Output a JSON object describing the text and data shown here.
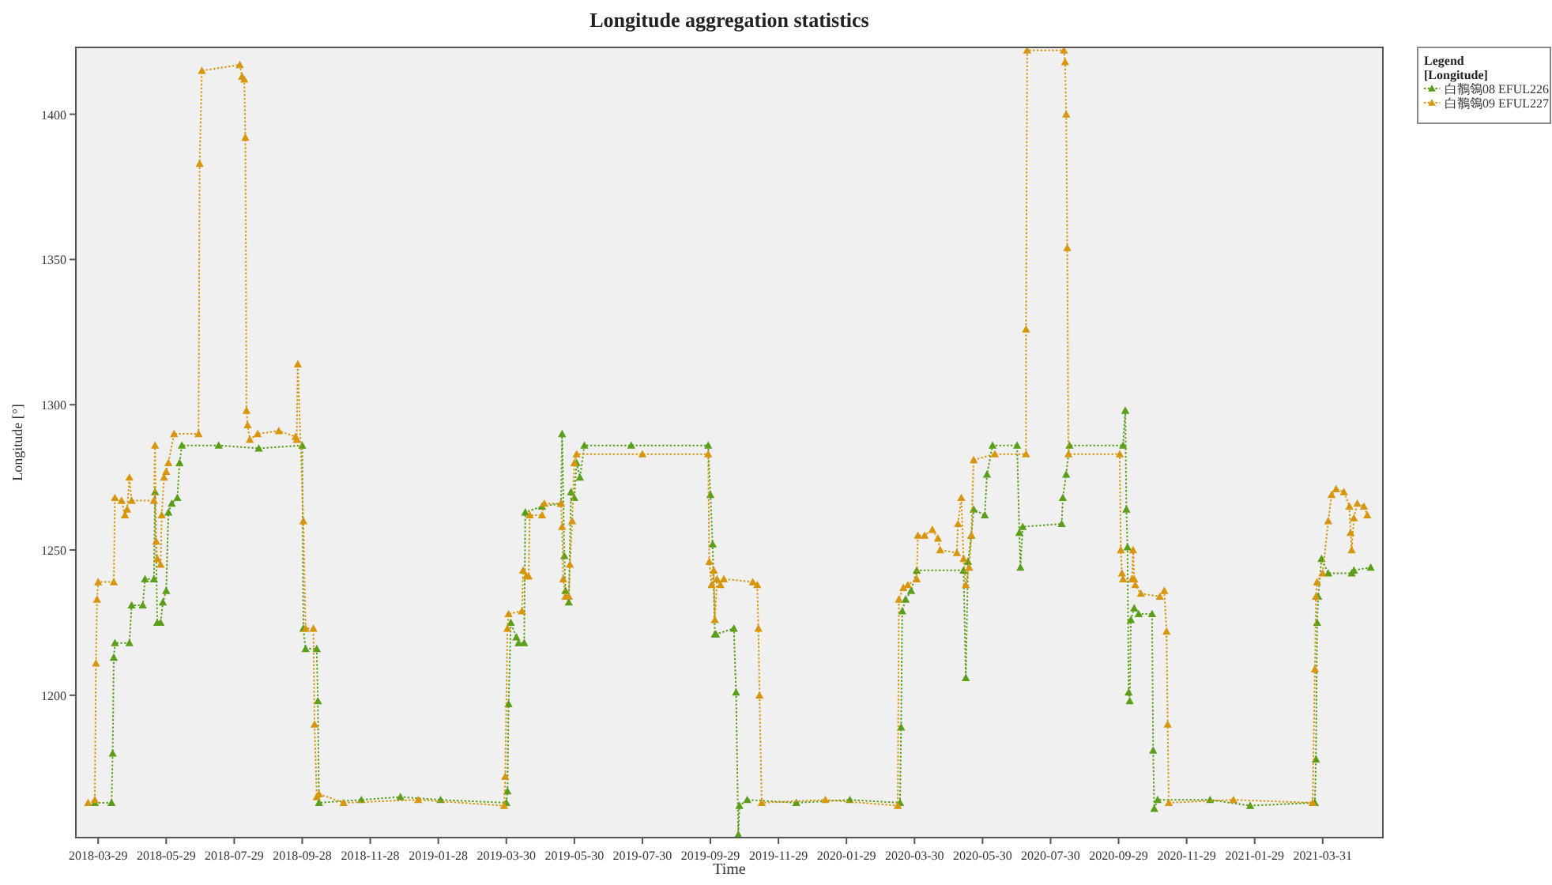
{
  "chart_data": {
    "type": "line",
    "title": "Longitude aggregation statistics",
    "xlabel": "Time",
    "ylabel": "Longitude [°]",
    "legend_title": "Legend\n[Longitude]",
    "legend": "top right",
    "marker": "triangle",
    "line_style": "dotted",
    "grid": false,
    "xlim": [
      "2018-03-09",
      "2021-05-24"
    ],
    "xticks": [
      "2018-03-29",
      "2018-05-29",
      "2018-07-29",
      "2018-09-28",
      "2018-11-28",
      "2019-01-28",
      "2019-03-30",
      "2019-05-30",
      "2019-07-30",
      "2019-09-29",
      "2019-11-29",
      "2020-01-29",
      "2020-03-30",
      "2020-05-30",
      "2020-07-30",
      "2020-09-29",
      "2020-11-29",
      "2021-01-29",
      "2021-03-31"
    ],
    "ylim": [
      1151,
      1423
    ],
    "yticks": [
      1200,
      1250,
      1300,
      1350,
      1400
    ],
    "series": [
      {
        "name": "白鶺鴒08 EFUL226",
        "color": "#5a9e1a",
        "x": [
          "2018-03-26",
          "2018-04-10",
          "2018-04-11",
          "2018-04-12",
          "2018-04-13",
          "2018-04-26",
          "2018-04-28",
          "2018-05-08",
          "2018-05-10",
          "2018-05-18",
          "2018-05-19",
          "2018-05-21",
          "2018-05-24",
          "2018-05-26",
          "2018-05-29",
          "2018-05-31",
          "2018-06-03",
          "2018-06-08",
          "2018-06-10",
          "2018-06-12",
          "2018-07-15",
          "2018-08-20",
          "2018-09-28",
          "2018-09-29",
          "2018-10-01",
          "2018-10-11",
          "2018-10-12",
          "2018-10-13",
          "2018-11-20",
          "2018-12-25",
          "2019-01-30",
          "2019-03-30",
          "2019-03-31",
          "2019-04-01",
          "2019-04-03",
          "2019-04-08",
          "2019-04-10",
          "2019-04-15",
          "2019-04-16",
          "2019-05-01",
          "2019-05-18",
          "2019-05-19",
          "2019-05-21",
          "2019-05-22",
          "2019-05-25",
          "2019-05-27",
          "2019-05-30",
          "2019-06-01",
          "2019-06-04",
          "2019-06-08",
          "2019-07-20",
          "2019-09-27",
          "2019-09-29",
          "2019-10-01",
          "2019-10-03",
          "2019-10-04",
          "2019-10-20",
          "2019-10-22",
          "2019-10-24",
          "2019-10-25",
          "2019-11-01",
          "2019-12-15",
          "2020-02-01",
          "2020-03-17",
          "2020-03-18",
          "2020-03-19",
          "2020-03-22",
          "2020-03-27",
          "2020-04-01",
          "2020-05-13",
          "2020-05-15",
          "2020-05-17",
          "2020-05-20",
          "2020-05-22",
          "2020-06-01",
          "2020-06-03",
          "2020-06-08",
          "2020-06-30",
          "2020-07-02",
          "2020-07-03",
          "2020-07-05",
          "2020-08-09",
          "2020-08-10",
          "2020-08-13",
          "2020-08-16",
          "2020-10-03",
          "2020-10-05",
          "2020-10-06",
          "2020-10-07",
          "2020-10-08",
          "2020-10-09",
          "2020-10-10",
          "2020-10-13",
          "2020-10-17",
          "2020-10-29",
          "2020-10-30",
          "2020-10-31",
          "2020-11-03",
          "2020-12-20",
          "2021-01-25",
          "2021-03-24",
          "2021-03-25",
          "2021-03-26",
          "2021-03-27",
          "2021-03-30",
          "2021-04-05",
          "2021-04-26",
          "2021-04-28",
          "2021-05-13"
        ],
        "values": [
          1163,
          1163,
          1180,
          1213,
          1218,
          1218,
          1231,
          1231,
          1240,
          1240,
          1270,
          1225,
          1225,
          1232,
          1236,
          1263,
          1266,
          1268,
          1280,
          1286,
          1286,
          1285,
          1286,
          1223,
          1216,
          1216,
          1198,
          1163,
          1164,
          1165,
          1164,
          1163,
          1167,
          1197,
          1225,
          1220,
          1218,
          1218,
          1263,
          1265,
          1266,
          1290,
          1248,
          1236,
          1232,
          1270,
          1268,
          1280,
          1275,
          1286,
          1286,
          1286,
          1269,
          1252,
          1221,
          1221,
          1223,
          1201,
          1152,
          1162,
          1164,
          1163,
          1164,
          1163,
          1189,
          1229,
          1233,
          1236,
          1243,
          1243,
          1206,
          1246,
          1255,
          1264,
          1262,
          1276,
          1286,
          1286,
          1256,
          1244,
          1258,
          1259,
          1268,
          1276,
          1286,
          1286,
          1298,
          1264,
          1251,
          1201,
          1198,
          1226,
          1230,
          1228,
          1228,
          1181,
          1161,
          1164,
          1164,
          1162,
          1163,
          1178,
          1225,
          1234,
          1247,
          1242,
          1242,
          1243,
          1244
        ]
      },
      {
        "name": "白鶺鴒09 EFUL227",
        "color": "#d8960e",
        "x": [
          "2018-03-20",
          "2018-03-26",
          "2018-03-27",
          "2018-03-28",
          "2018-03-29",
          "2018-04-12",
          "2018-04-13",
          "2018-04-19",
          "2018-04-22",
          "2018-04-24",
          "2018-04-26",
          "2018-04-28",
          "2018-05-18",
          "2018-05-19",
          "2018-05-20",
          "2018-05-21",
          "2018-05-24",
          "2018-05-25",
          "2018-05-27",
          "2018-05-29",
          "2018-05-31",
          "2018-06-05",
          "2018-06-27",
          "2018-06-28",
          "2018-06-30",
          "2018-08-03",
          "2018-08-05",
          "2018-08-07",
          "2018-08-08",
          "2018-08-09",
          "2018-08-10",
          "2018-08-12",
          "2018-08-19",
          "2018-09-07",
          "2018-09-22",
          "2018-09-23",
          "2018-09-24",
          "2018-09-29",
          "2018-10-01",
          "2018-10-08",
          "2018-10-09",
          "2018-10-11",
          "2018-10-13",
          "2018-11-04",
          "2019-01-10",
          "2019-03-28",
          "2019-03-29",
          "2019-03-31",
          "2019-04-01",
          "2019-04-13",
          "2019-04-14",
          "2019-04-17",
          "2019-04-19",
          "2019-04-20",
          "2019-05-01",
          "2019-05-03",
          "2019-05-18",
          "2019-05-19",
          "2019-05-20",
          "2019-05-22",
          "2019-05-25",
          "2019-05-26",
          "2019-05-28",
          "2019-05-30",
          "2019-06-01",
          "2019-07-30",
          "2019-09-27",
          "2019-09-28",
          "2019-09-30",
          "2019-10-02",
          "2019-10-03",
          "2019-10-05",
          "2019-10-08",
          "2019-10-11",
          "2019-11-06",
          "2019-11-10",
          "2019-11-11",
          "2019-11-12",
          "2019-11-14",
          "2020-01-10",
          "2020-03-15",
          "2020-03-16",
          "2020-03-20",
          "2020-03-24",
          "2020-04-01",
          "2020-04-02",
          "2020-04-08",
          "2020-04-15",
          "2020-04-20",
          "2020-04-22",
          "2020-05-07",
          "2020-05-08",
          "2020-05-11",
          "2020-05-13",
          "2020-05-15",
          "2020-05-18",
          "2020-05-20",
          "2020-05-22",
          "2020-06-10",
          "2020-07-08",
          "2020-07-08",
          "2020-07-09",
          "2020-08-11",
          "2020-08-12",
          "2020-08-13",
          "2020-08-14",
          "2020-08-15",
          "2020-09-30",
          "2020-10-01",
          "2020-10-02",
          "2020-10-03",
          "2020-10-11",
          "2020-10-12",
          "2020-10-13",
          "2020-10-14",
          "2020-10-19",
          "2020-11-05",
          "2020-11-09",
          "2020-11-11",
          "2020-11-12",
          "2020-11-13",
          "2021-01-10",
          "2021-03-22",
          "2021-03-24",
          "2021-03-25",
          "2021-03-26",
          "2021-03-31",
          "2021-04-05",
          "2021-04-08",
          "2021-04-12",
          "2021-04-19",
          "2021-04-24",
          "2021-04-25",
          "2021-04-26",
          "2021-04-28",
          "2021-05-01",
          "2021-05-07",
          "2021-05-10"
        ],
        "values": [
          1163,
          1164,
          1211,
          1233,
          1239,
          1239,
          1268,
          1267,
          1262,
          1264,
          1275,
          1267,
          1267,
          1286,
          1253,
          1247,
          1245,
          1262,
          1275,
          1277,
          1280,
          1290,
          1290,
          1383,
          1415,
          1417,
          1413,
          1412,
          1392,
          1298,
          1293,
          1288,
          1290,
          1291,
          1289,
          1288,
          1314,
          1260,
          1223,
          1223,
          1190,
          1165,
          1166,
          1163,
          1164,
          1162,
          1172,
          1223,
          1228,
          1229,
          1243,
          1241,
          1241,
          1262,
          1262,
          1266,
          1266,
          1258,
          1240,
          1234,
          1234,
          1245,
          1260,
          1280,
          1283,
          1283,
          1283,
          1246,
          1238,
          1243,
          1226,
          1240,
          1238,
          1240,
          1239,
          1238,
          1223,
          1200,
          1163,
          1164,
          1162,
          1233,
          1237,
          1238,
          1240,
          1255,
          1255,
          1257,
          1254,
          1250,
          1249,
          1259,
          1268,
          1247,
          1238,
          1244,
          1255,
          1281,
          1283,
          1283,
          1326,
          1422,
          1422,
          1418,
          1400,
          1354,
          1283,
          1283,
          1250,
          1242,
          1240,
          1240,
          1250,
          1240,
          1238,
          1235,
          1234,
          1236,
          1222,
          1190,
          1163,
          1164,
          1163,
          1209,
          1234,
          1239,
          1242,
          1260,
          1269,
          1271,
          1270,
          1265,
          1256,
          1250,
          1261,
          1266,
          1265,
          1262
        ]
      }
    ]
  }
}
